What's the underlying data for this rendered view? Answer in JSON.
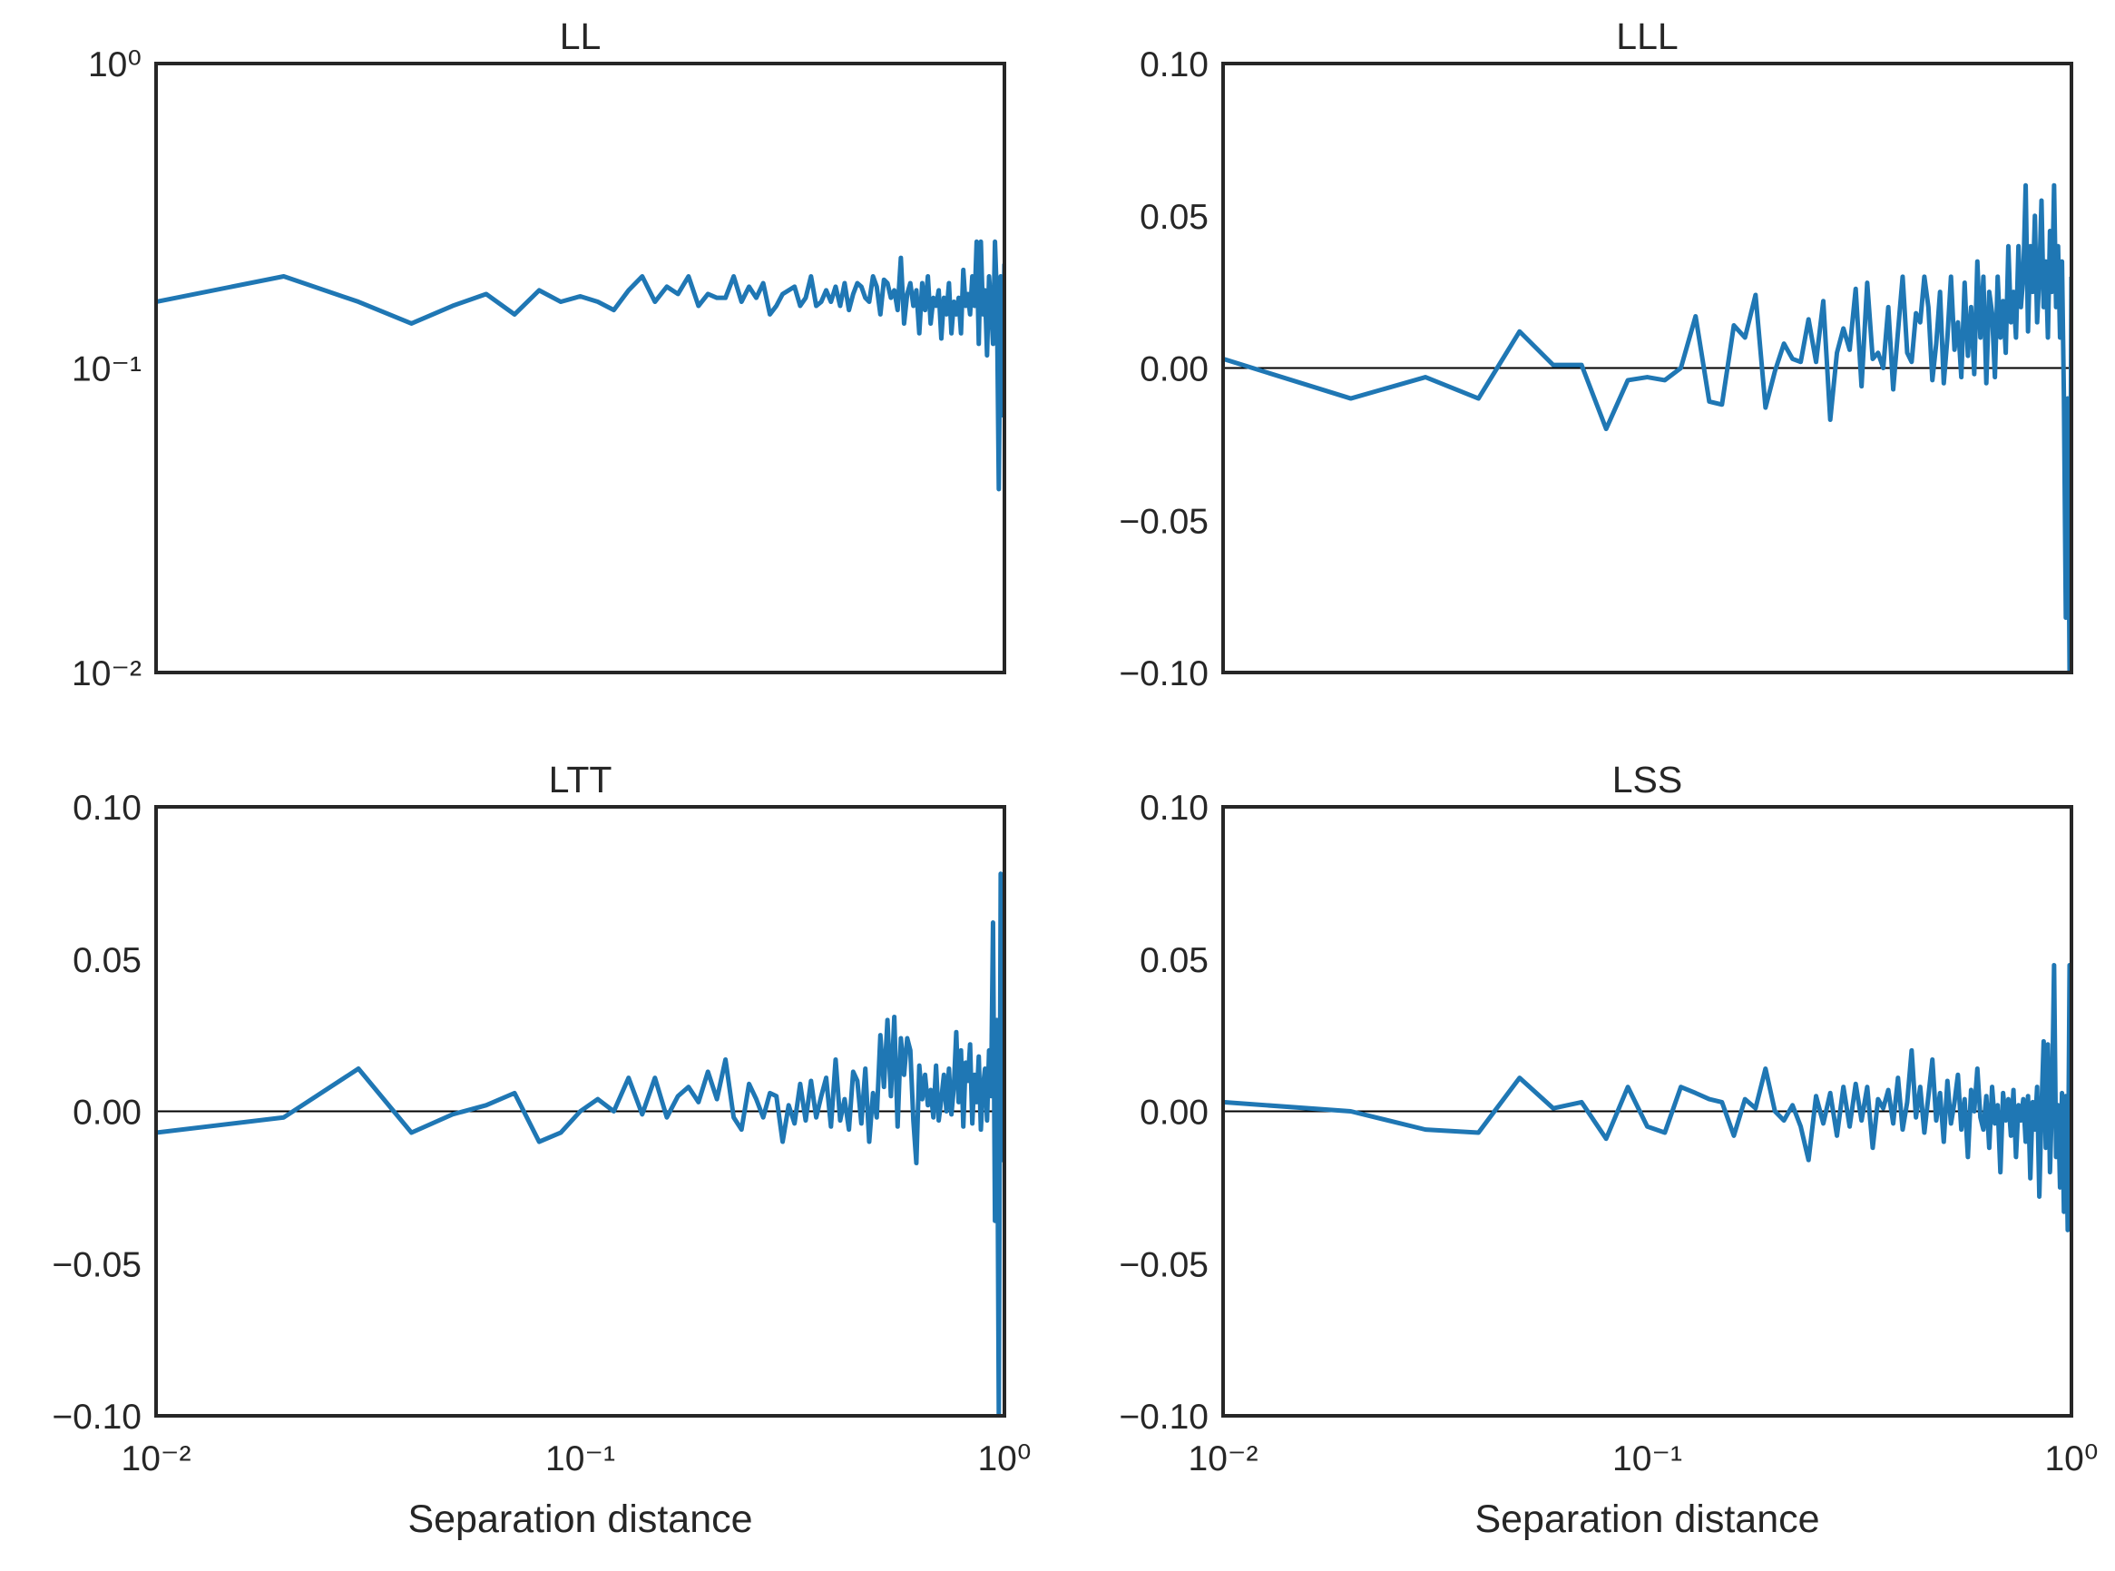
{
  "chart_data": [
    {
      "type": "line",
      "title": "LL",
      "color": "#1f77b4",
      "xscale": "log",
      "yscale": "log",
      "xlim": [
        0.01,
        1
      ],
      "ylim": [
        0.01,
        1
      ],
      "yticks": [
        {
          "value": 0.01,
          "label": "10⁻²"
        },
        {
          "value": 0.1,
          "label": "10⁻¹"
        },
        {
          "value": 1,
          "label": "10⁰"
        }
      ],
      "x": [
        0.01,
        0.02,
        0.03,
        0.04,
        0.05,
        0.06,
        0.07,
        0.08,
        0.09,
        0.1,
        0.11,
        0.12,
        0.13,
        0.14,
        0.15,
        0.16,
        0.17,
        0.18,
        0.19,
        0.2,
        0.21,
        0.22,
        0.23,
        0.24,
        0.25,
        0.26,
        0.27,
        0.28,
        0.29,
        0.3,
        0.31,
        0.32,
        0.33,
        0.34,
        0.35,
        0.36,
        0.37,
        0.38,
        0.39,
        0.4,
        0.41,
        0.42,
        0.43,
        0.44,
        0.45,
        0.46,
        0.47,
        0.48,
        0.49,
        0.5,
        0.51,
        0.52,
        0.53,
        0.54,
        0.55,
        0.56,
        0.57,
        0.58,
        0.59,
        0.6,
        0.61,
        0.62,
        0.63,
        0.64,
        0.65,
        0.66,
        0.67,
        0.68,
        0.69,
        0.7,
        0.71,
        0.72,
        0.73,
        0.74,
        0.75,
        0.76,
        0.77,
        0.78,
        0.79,
        0.8,
        0.81,
        0.82,
        0.83,
        0.84,
        0.85,
        0.86,
        0.87,
        0.88,
        0.89,
        0.9,
        0.91,
        0.92,
        0.93,
        0.94,
        0.95,
        0.96,
        0.97,
        0.98,
        0.99,
        1
      ],
      "values": [
        0.165,
        0.2,
        0.165,
        0.14,
        0.16,
        0.175,
        0.15,
        0.18,
        0.165,
        0.172,
        0.165,
        0.155,
        0.18,
        0.2,
        0.165,
        0.185,
        0.175,
        0.2,
        0.16,
        0.175,
        0.17,
        0.17,
        0.2,
        0.165,
        0.185,
        0.17,
        0.19,
        0.15,
        0.16,
        0.175,
        0.18,
        0.185,
        0.16,
        0.17,
        0.2,
        0.16,
        0.165,
        0.18,
        0.165,
        0.185,
        0.16,
        0.19,
        0.155,
        0.175,
        0.19,
        0.185,
        0.17,
        0.165,
        0.2,
        0.185,
        0.15,
        0.195,
        0.19,
        0.17,
        0.18,
        0.155,
        0.23,
        0.14,
        0.175,
        0.19,
        0.16,
        0.18,
        0.13,
        0.19,
        0.155,
        0.2,
        0.14,
        0.17,
        0.16,
        0.18,
        0.125,
        0.17,
        0.15,
        0.19,
        0.13,
        0.165,
        0.15,
        0.17,
        0.13,
        0.21,
        0.16,
        0.175,
        0.15,
        0.2,
        0.16,
        0.26,
        0.12,
        0.26,
        0.15,
        0.18,
        0.11,
        0.2,
        0.16,
        0.12,
        0.26,
        0.17,
        0.04,
        0.2,
        0.07,
        0.22
      ]
    },
    {
      "type": "line",
      "title": "LLL",
      "color": "#1f77b4",
      "xscale": "log",
      "yscale": "linear",
      "xlim": [
        0.01,
        1
      ],
      "ylim": [
        -0.1,
        0.1
      ],
      "hlines": [
        0
      ],
      "yticks": [
        {
          "value": -0.1,
          "label": "−0.10"
        },
        {
          "value": -0.05,
          "label": "−0.05"
        },
        {
          "value": 0,
          "label": "0.00"
        },
        {
          "value": 0.05,
          "label": "0.05"
        },
        {
          "value": 0.1,
          "label": "0.10"
        }
      ],
      "x": [
        0.01,
        0.02,
        0.03,
        0.04,
        0.05,
        0.06,
        0.07,
        0.08,
        0.09,
        0.1,
        0.11,
        0.12,
        0.13,
        0.14,
        0.15,
        0.16,
        0.17,
        0.18,
        0.19,
        0.2,
        0.21,
        0.22,
        0.23,
        0.24,
        0.25,
        0.26,
        0.27,
        0.28,
        0.29,
        0.3,
        0.31,
        0.32,
        0.33,
        0.34,
        0.35,
        0.36,
        0.37,
        0.38,
        0.39,
        0.4,
        0.41,
        0.42,
        0.43,
        0.44,
        0.45,
        0.46,
        0.47,
        0.48,
        0.49,
        0.5,
        0.51,
        0.52,
        0.53,
        0.54,
        0.55,
        0.56,
        0.57,
        0.58,
        0.59,
        0.6,
        0.61,
        0.62,
        0.63,
        0.64,
        0.65,
        0.66,
        0.67,
        0.68,
        0.69,
        0.7,
        0.71,
        0.72,
        0.73,
        0.74,
        0.75,
        0.76,
        0.77,
        0.78,
        0.79,
        0.8,
        0.81,
        0.82,
        0.83,
        0.84,
        0.85,
        0.86,
        0.87,
        0.88,
        0.89,
        0.9,
        0.91,
        0.92,
        0.93,
        0.94,
        0.95,
        0.96,
        0.97,
        0.98,
        0.99,
        1
      ],
      "values": [
        0.003,
        -0.01,
        -0.003,
        -0.01,
        0.012,
        0.001,
        0.001,
        -0.02,
        -0.004,
        -0.003,
        -0.004,
        0,
        0.017,
        -0.011,
        -0.012,
        0.014,
        0.01,
        0.024,
        -0.013,
        -0.001,
        0.008,
        0.003,
        0.002,
        0.016,
        0.002,
        0.022,
        -0.017,
        0.005,
        0.013,
        0.006,
        0.026,
        -0.006,
        0.028,
        0.003,
        0.005,
        0,
        0.02,
        -0.007,
        0.012,
        0.03,
        0.005,
        0.002,
        0.018,
        0.015,
        0.03,
        0.02,
        -0.004,
        0.008,
        0.025,
        -0.005,
        0.01,
        0.03,
        0.006,
        0.015,
        -0.003,
        0.028,
        0.004,
        0.02,
        -0.002,
        0.035,
        0.01,
        0.03,
        -0.005,
        0.025,
        0.018,
        -0.003,
        0.03,
        0.01,
        0.022,
        0.005,
        0.04,
        0.015,
        0.025,
        0.01,
        0.04,
        0.02,
        0.03,
        0.06,
        0.012,
        0.04,
        0.025,
        0.05,
        0.015,
        0.03,
        0.055,
        0.02,
        0.035,
        0.01,
        0.045,
        0.025,
        0.06,
        0.02,
        0.04,
        0.01,
        0.035,
        -0.01,
        -0.082,
        -0.01,
        -0.1,
        0.03
      ]
    },
    {
      "type": "line",
      "title": "LTT",
      "color": "#1f77b4",
      "xscale": "log",
      "yscale": "linear",
      "xlim": [
        0.01,
        1
      ],
      "ylim": [
        -0.1,
        0.1
      ],
      "hlines": [
        0
      ],
      "xlabel": "Separation distance",
      "xticks": [
        {
          "value": 0.01,
          "label": "10⁻²"
        },
        {
          "value": 0.1,
          "label": "10⁻¹"
        },
        {
          "value": 1,
          "label": "10⁰"
        }
      ],
      "yticks": [
        {
          "value": -0.1,
          "label": "−0.10"
        },
        {
          "value": -0.05,
          "label": "−0.05"
        },
        {
          "value": 0,
          "label": "0.00"
        },
        {
          "value": 0.05,
          "label": "0.05"
        },
        {
          "value": 0.1,
          "label": "0.10"
        }
      ],
      "x": [
        0.01,
        0.02,
        0.03,
        0.04,
        0.05,
        0.06,
        0.07,
        0.08,
        0.09,
        0.1,
        0.11,
        0.12,
        0.13,
        0.14,
        0.15,
        0.16,
        0.17,
        0.18,
        0.19,
        0.2,
        0.21,
        0.22,
        0.23,
        0.24,
        0.25,
        0.26,
        0.27,
        0.28,
        0.29,
        0.3,
        0.31,
        0.32,
        0.33,
        0.34,
        0.35,
        0.36,
        0.37,
        0.38,
        0.39,
        0.4,
        0.41,
        0.42,
        0.43,
        0.44,
        0.45,
        0.46,
        0.47,
        0.48,
        0.49,
        0.5,
        0.51,
        0.52,
        0.53,
        0.54,
        0.55,
        0.56,
        0.57,
        0.58,
        0.59,
        0.6,
        0.61,
        0.62,
        0.63,
        0.64,
        0.65,
        0.66,
        0.67,
        0.68,
        0.69,
        0.7,
        0.71,
        0.72,
        0.73,
        0.74,
        0.75,
        0.76,
        0.77,
        0.78,
        0.79,
        0.8,
        0.81,
        0.82,
        0.83,
        0.84,
        0.85,
        0.86,
        0.87,
        0.88,
        0.89,
        0.9,
        0.91,
        0.92,
        0.93,
        0.94,
        0.95,
        0.96,
        0.97,
        0.98,
        0.99,
        1
      ],
      "values": [
        -0.007,
        -0.002,
        0.014,
        -0.007,
        -0.001,
        0.002,
        0.006,
        -0.01,
        -0.007,
        0,
        0.004,
        0,
        0.011,
        -0.001,
        0.011,
        -0.002,
        0.005,
        0.008,
        0.003,
        0.013,
        0.004,
        0.017,
        -0.002,
        -0.006,
        0.009,
        0.004,
        -0.002,
        0.006,
        0.005,
        -0.01,
        0.002,
        -0.004,
        0.009,
        -0.003,
        0.01,
        -0.002,
        0.005,
        0.011,
        -0.005,
        0.017,
        -0.003,
        0.004,
        -0.006,
        0.013,
        0.01,
        -0.004,
        0.014,
        -0.01,
        0.006,
        -0.002,
        0.025,
        0.008,
        0.03,
        0.005,
        0.031,
        -0.005,
        0.024,
        0.012,
        0.024,
        0.02,
        -0.003,
        -0.017,
        0.015,
        0.004,
        0.012,
        0.002,
        0.007,
        -0.002,
        0.015,
        -0.003,
        0.004,
        0.012,
        0,
        0.014,
        -0.001,
        0.008,
        0.026,
        0.003,
        0.02,
        -0.005,
        0.016,
        0.01,
        0.022,
        -0.004,
        0.012,
        0.003,
        0.018,
        -0.006,
        0.008,
        0.014,
        -0.003,
        0.02,
        0.005,
        0.062,
        -0.036,
        0.03,
        -0.1,
        0.078,
        -0.016,
        0.012
      ]
    },
    {
      "type": "line",
      "title": "LSS",
      "color": "#1f77b4",
      "xscale": "log",
      "yscale": "linear",
      "xlim": [
        0.01,
        1
      ],
      "ylim": [
        -0.1,
        0.1
      ],
      "hlines": [
        0
      ],
      "xlabel": "Separation distance",
      "xticks": [
        {
          "value": 0.01,
          "label": "10⁻²"
        },
        {
          "value": 0.1,
          "label": "10⁻¹"
        },
        {
          "value": 1,
          "label": "10⁰"
        }
      ],
      "yticks": [
        {
          "value": -0.1,
          "label": "−0.10"
        },
        {
          "value": -0.05,
          "label": "−0.05"
        },
        {
          "value": 0,
          "label": "0.00"
        },
        {
          "value": 0.05,
          "label": "0.05"
        },
        {
          "value": 0.1,
          "label": "0.10"
        }
      ],
      "x": [
        0.01,
        0.02,
        0.03,
        0.04,
        0.05,
        0.06,
        0.07,
        0.08,
        0.09,
        0.1,
        0.11,
        0.12,
        0.13,
        0.14,
        0.15,
        0.16,
        0.17,
        0.18,
        0.19,
        0.2,
        0.21,
        0.22,
        0.23,
        0.24,
        0.25,
        0.26,
        0.27,
        0.28,
        0.29,
        0.3,
        0.31,
        0.32,
        0.33,
        0.34,
        0.35,
        0.36,
        0.37,
        0.38,
        0.39,
        0.4,
        0.41,
        0.42,
        0.43,
        0.44,
        0.45,
        0.46,
        0.47,
        0.48,
        0.49,
        0.5,
        0.51,
        0.52,
        0.53,
        0.54,
        0.55,
        0.56,
        0.57,
        0.58,
        0.59,
        0.6,
        0.61,
        0.62,
        0.63,
        0.64,
        0.65,
        0.66,
        0.67,
        0.68,
        0.69,
        0.7,
        0.71,
        0.72,
        0.73,
        0.74,
        0.75,
        0.76,
        0.77,
        0.78,
        0.79,
        0.8,
        0.81,
        0.82,
        0.83,
        0.84,
        0.85,
        0.86,
        0.87,
        0.88,
        0.89,
        0.9,
        0.91,
        0.92,
        0.93,
        0.94,
        0.95,
        0.96,
        0.97,
        0.98,
        0.99,
        1
      ],
      "values": [
        0.003,
        0,
        -0.006,
        -0.007,
        0.011,
        0.001,
        0.003,
        -0.009,
        0.008,
        -0.005,
        -0.007,
        0.008,
        0.006,
        0.004,
        0.003,
        -0.008,
        0.004,
        0.001,
        0.014,
        0,
        -0.003,
        0.002,
        -0.005,
        -0.016,
        0.005,
        -0.004,
        0.006,
        -0.008,
        0.008,
        -0.005,
        0.009,
        -0.003,
        0.008,
        -0.012,
        0.004,
        0.001,
        0.007,
        -0.004,
        0.011,
        -0.006,
        0.003,
        0.02,
        -0.002,
        0.008,
        -0.007,
        0.005,
        0.017,
        -0.003,
        0.006,
        -0.01,
        0.01,
        -0.004,
        0.003,
        0.012,
        -0.006,
        0.004,
        -0.015,
        0.007,
        0,
        0.014,
        -0.002,
        -0.006,
        0.005,
        -0.012,
        0.008,
        -0.004,
        0.002,
        -0.02,
        0.006,
        -0.003,
        0.004,
        -0.008,
        0.007,
        -0.015,
        0.002,
        -0.003,
        0.004,
        -0.01,
        0.005,
        -0.022,
        0.003,
        -0.006,
        0.008,
        -0.028,
        0.001,
        0.023,
        -0.012,
        0.022,
        -0.02,
        0.004,
        0.048,
        -0.015,
        0.002,
        -0.025,
        0.006,
        -0.033,
        0.005,
        -0.039,
        0.048,
        -0.01
      ]
    }
  ]
}
